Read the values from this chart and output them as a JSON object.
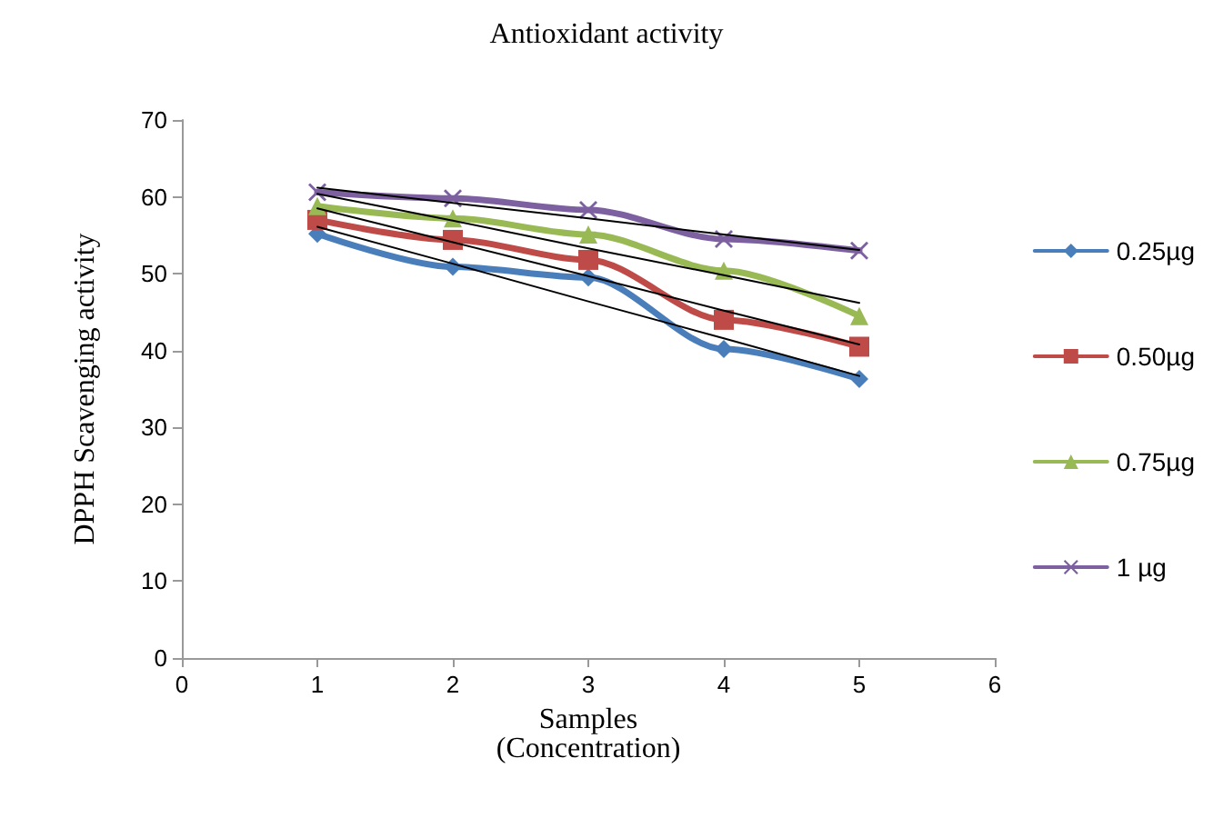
{
  "chart_data": {
    "type": "line",
    "title": "Antioxidant activity",
    "xlabel": "Samples\n(Concentration)",
    "ylabel": "DPPH Scavenging activity",
    "x": [
      1,
      2,
      3,
      4,
      5
    ],
    "xlim": [
      0,
      6
    ],
    "xticks": [
      0,
      1,
      2,
      3,
      4,
      5,
      6
    ],
    "ylim": [
      0,
      70
    ],
    "yticks": [
      0,
      10,
      20,
      30,
      40,
      50,
      60,
      70
    ],
    "grid": false,
    "legend": "right",
    "line_style": "solid",
    "series": [
      {
        "name": "0.25µg",
        "color": "#4a7ebb",
        "marker": "diamond",
        "values": [
          55.2,
          50.9,
          49.5,
          40.2,
          36.3
        ]
      },
      {
        "name": "0.50µg",
        "color": "#be4b48",
        "marker": "square",
        "values": [
          57,
          54.4,
          51.8,
          44,
          40.5
        ]
      },
      {
        "name": "0.75µg",
        "color": "#98b954",
        "marker": "triangle",
        "values": [
          58.8,
          57.2,
          55.1,
          50.4,
          44.5
        ]
      },
      {
        "name": "1 µg",
        "color": "#7d60a0",
        "marker": "cross",
        "values": [
          60.6,
          59.8,
          58.3,
          54.5,
          53
        ]
      },
      {
        "color": "#000000",
        "marker": "none",
        "values": [
          56.1,
          51.3,
          46.4,
          41.6,
          36.7
        ]
      },
      {
        "color": "#000000",
        "marker": "none",
        "values": [
          58.5,
          54.1,
          49.7,
          45.2,
          40.8
        ]
      },
      {
        "color": "#000000",
        "marker": "none",
        "values": [
          60.4,
          56.9,
          53.3,
          49.8,
          46.2
        ]
      },
      {
        "color": "#000000",
        "marker": "none",
        "values": [
          61.2,
          59.2,
          57.2,
          55.1,
          53.1
        ]
      }
    ]
  }
}
